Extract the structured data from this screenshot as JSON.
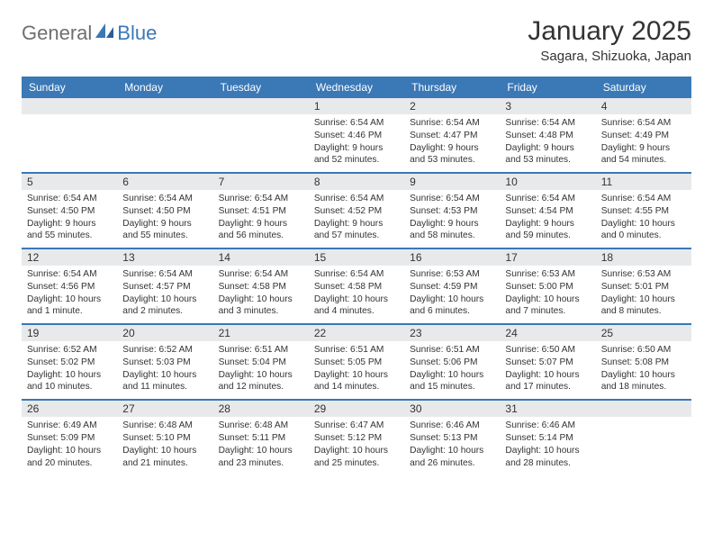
{
  "logo": {
    "text1": "General",
    "text2": "Blue"
  },
  "title": "January 2025",
  "location": "Sagara, Shizuoka, Japan",
  "colors": {
    "header_bg": "#3a78b6",
    "header_text": "#ffffff",
    "daynum_bg": "#e8e9eb",
    "body_text": "#333333",
    "logo_gray": "#6f6f6f",
    "logo_blue": "#3a78b6",
    "page_bg": "#ffffff"
  },
  "typography": {
    "title_fontsize": 30,
    "location_fontsize": 15,
    "weekday_fontsize": 12,
    "daynum_fontsize": 12,
    "cell_fontsize": 10.2
  },
  "weekdays": [
    "Sunday",
    "Monday",
    "Tuesday",
    "Wednesday",
    "Thursday",
    "Friday",
    "Saturday"
  ],
  "weeks": [
    [
      {
        "day": ""
      },
      {
        "day": ""
      },
      {
        "day": ""
      },
      {
        "day": "1",
        "sunrise": "Sunrise: 6:54 AM",
        "sunset": "Sunset: 4:46 PM",
        "daylight": "Daylight: 9 hours and 52 minutes."
      },
      {
        "day": "2",
        "sunrise": "Sunrise: 6:54 AM",
        "sunset": "Sunset: 4:47 PM",
        "daylight": "Daylight: 9 hours and 53 minutes."
      },
      {
        "day": "3",
        "sunrise": "Sunrise: 6:54 AM",
        "sunset": "Sunset: 4:48 PM",
        "daylight": "Daylight: 9 hours and 53 minutes."
      },
      {
        "day": "4",
        "sunrise": "Sunrise: 6:54 AM",
        "sunset": "Sunset: 4:49 PM",
        "daylight": "Daylight: 9 hours and 54 minutes."
      }
    ],
    [
      {
        "day": "5",
        "sunrise": "Sunrise: 6:54 AM",
        "sunset": "Sunset: 4:50 PM",
        "daylight": "Daylight: 9 hours and 55 minutes."
      },
      {
        "day": "6",
        "sunrise": "Sunrise: 6:54 AM",
        "sunset": "Sunset: 4:50 PM",
        "daylight": "Daylight: 9 hours and 55 minutes."
      },
      {
        "day": "7",
        "sunrise": "Sunrise: 6:54 AM",
        "sunset": "Sunset: 4:51 PM",
        "daylight": "Daylight: 9 hours and 56 minutes."
      },
      {
        "day": "8",
        "sunrise": "Sunrise: 6:54 AM",
        "sunset": "Sunset: 4:52 PM",
        "daylight": "Daylight: 9 hours and 57 minutes."
      },
      {
        "day": "9",
        "sunrise": "Sunrise: 6:54 AM",
        "sunset": "Sunset: 4:53 PM",
        "daylight": "Daylight: 9 hours and 58 minutes."
      },
      {
        "day": "10",
        "sunrise": "Sunrise: 6:54 AM",
        "sunset": "Sunset: 4:54 PM",
        "daylight": "Daylight: 9 hours and 59 minutes."
      },
      {
        "day": "11",
        "sunrise": "Sunrise: 6:54 AM",
        "sunset": "Sunset: 4:55 PM",
        "daylight": "Daylight: 10 hours and 0 minutes."
      }
    ],
    [
      {
        "day": "12",
        "sunrise": "Sunrise: 6:54 AM",
        "sunset": "Sunset: 4:56 PM",
        "daylight": "Daylight: 10 hours and 1 minute."
      },
      {
        "day": "13",
        "sunrise": "Sunrise: 6:54 AM",
        "sunset": "Sunset: 4:57 PM",
        "daylight": "Daylight: 10 hours and 2 minutes."
      },
      {
        "day": "14",
        "sunrise": "Sunrise: 6:54 AM",
        "sunset": "Sunset: 4:58 PM",
        "daylight": "Daylight: 10 hours and 3 minutes."
      },
      {
        "day": "15",
        "sunrise": "Sunrise: 6:54 AM",
        "sunset": "Sunset: 4:58 PM",
        "daylight": "Daylight: 10 hours and 4 minutes."
      },
      {
        "day": "16",
        "sunrise": "Sunrise: 6:53 AM",
        "sunset": "Sunset: 4:59 PM",
        "daylight": "Daylight: 10 hours and 6 minutes."
      },
      {
        "day": "17",
        "sunrise": "Sunrise: 6:53 AM",
        "sunset": "Sunset: 5:00 PM",
        "daylight": "Daylight: 10 hours and 7 minutes."
      },
      {
        "day": "18",
        "sunrise": "Sunrise: 6:53 AM",
        "sunset": "Sunset: 5:01 PM",
        "daylight": "Daylight: 10 hours and 8 minutes."
      }
    ],
    [
      {
        "day": "19",
        "sunrise": "Sunrise: 6:52 AM",
        "sunset": "Sunset: 5:02 PM",
        "daylight": "Daylight: 10 hours and 10 minutes."
      },
      {
        "day": "20",
        "sunrise": "Sunrise: 6:52 AM",
        "sunset": "Sunset: 5:03 PM",
        "daylight": "Daylight: 10 hours and 11 minutes."
      },
      {
        "day": "21",
        "sunrise": "Sunrise: 6:51 AM",
        "sunset": "Sunset: 5:04 PM",
        "daylight": "Daylight: 10 hours and 12 minutes."
      },
      {
        "day": "22",
        "sunrise": "Sunrise: 6:51 AM",
        "sunset": "Sunset: 5:05 PM",
        "daylight": "Daylight: 10 hours and 14 minutes."
      },
      {
        "day": "23",
        "sunrise": "Sunrise: 6:51 AM",
        "sunset": "Sunset: 5:06 PM",
        "daylight": "Daylight: 10 hours and 15 minutes."
      },
      {
        "day": "24",
        "sunrise": "Sunrise: 6:50 AM",
        "sunset": "Sunset: 5:07 PM",
        "daylight": "Daylight: 10 hours and 17 minutes."
      },
      {
        "day": "25",
        "sunrise": "Sunrise: 6:50 AM",
        "sunset": "Sunset: 5:08 PM",
        "daylight": "Daylight: 10 hours and 18 minutes."
      }
    ],
    [
      {
        "day": "26",
        "sunrise": "Sunrise: 6:49 AM",
        "sunset": "Sunset: 5:09 PM",
        "daylight": "Daylight: 10 hours and 20 minutes."
      },
      {
        "day": "27",
        "sunrise": "Sunrise: 6:48 AM",
        "sunset": "Sunset: 5:10 PM",
        "daylight": "Daylight: 10 hours and 21 minutes."
      },
      {
        "day": "28",
        "sunrise": "Sunrise: 6:48 AM",
        "sunset": "Sunset: 5:11 PM",
        "daylight": "Daylight: 10 hours and 23 minutes."
      },
      {
        "day": "29",
        "sunrise": "Sunrise: 6:47 AM",
        "sunset": "Sunset: 5:12 PM",
        "daylight": "Daylight: 10 hours and 25 minutes."
      },
      {
        "day": "30",
        "sunrise": "Sunrise: 6:46 AM",
        "sunset": "Sunset: 5:13 PM",
        "daylight": "Daylight: 10 hours and 26 minutes."
      },
      {
        "day": "31",
        "sunrise": "Sunrise: 6:46 AM",
        "sunset": "Sunset: 5:14 PM",
        "daylight": "Daylight: 10 hours and 28 minutes."
      },
      {
        "day": ""
      }
    ]
  ]
}
